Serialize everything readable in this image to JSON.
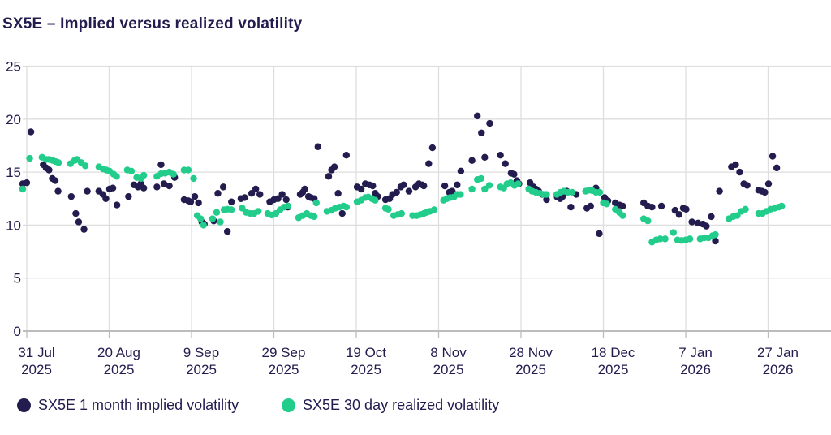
{
  "title": "SX5E – Implied versus realized volatility",
  "colors": {
    "implied": "#221c4f",
    "realized": "#22cd8c",
    "grid": "#dedede",
    "axis": "#bcbcbc",
    "text": "#221c4f"
  },
  "legend": [
    {
      "label": "SX5E 1 month implied volatility",
      "color": "#221c4f"
    },
    {
      "label": "SX5E 30 day realized volatility",
      "color": "#22cd8c"
    }
  ],
  "chart_data": {
    "type": "scatter",
    "title": "SX5E – Implied versus realized volatility",
    "x_unit": "days since 31 Jul 2025",
    "xlim": [
      -2,
      195
    ],
    "ylim": [
      0,
      25
    ],
    "grid": true,
    "legend_position": "bottom",
    "y_ticks": [
      0,
      5,
      10,
      15,
      20,
      25
    ],
    "x_ticks": [
      {
        "day": 0,
        "top": "31 Jul",
        "bottom": "2025"
      },
      {
        "day": 20,
        "top": "20 Aug",
        "bottom": "2025"
      },
      {
        "day": 40,
        "top": "9 Sep",
        "bottom": "2025"
      },
      {
        "day": 60,
        "top": "29 Sep",
        "bottom": "2025"
      },
      {
        "day": 80,
        "top": "19 Oct",
        "bottom": "2025"
      },
      {
        "day": 100,
        "top": "8 Nov",
        "bottom": "2025"
      },
      {
        "day": 120,
        "top": "28 Nov",
        "bottom": "2025"
      },
      {
        "day": 140,
        "top": "18 Dec",
        "bottom": "2025"
      },
      {
        "day": 160,
        "top": "7 Jan",
        "bottom": "2026"
      },
      {
        "day": 180,
        "top": "27 Jan",
        "bottom": "2026"
      }
    ],
    "series": [
      {
        "name": "SX5E 1 month implied volatility",
        "color": "#221c4f",
        "points": [
          [
            -1,
            13.9
          ],
          [
            0,
            14.0
          ],
          [
            1,
            18.8
          ],
          [
            4,
            15.7
          ],
          [
            4.7,
            15.4
          ],
          [
            5.4,
            15.2
          ],
          [
            6.2,
            14.4
          ],
          [
            6.9,
            14.2
          ],
          [
            7.6,
            13.2
          ],
          [
            10.8,
            12.7
          ],
          [
            11.9,
            11.1
          ],
          [
            12.6,
            10.3
          ],
          [
            13.9,
            9.6
          ],
          [
            14.7,
            13.2
          ],
          [
            17.5,
            13.2
          ],
          [
            18.5,
            12.9
          ],
          [
            19.2,
            12.5
          ],
          [
            20.1,
            13.4
          ],
          [
            20.9,
            13.5
          ],
          [
            21.9,
            11.9
          ],
          [
            24.7,
            12.7
          ],
          [
            26,
            13.8
          ],
          [
            27,
            13.6
          ],
          [
            27.7,
            13.9
          ],
          [
            28.4,
            13.5
          ],
          [
            31.6,
            13.6
          ],
          [
            32.6,
            15.7
          ],
          [
            33.3,
            13.9
          ],
          [
            34.6,
            13.7
          ],
          [
            35.9,
            14.5
          ],
          [
            38.2,
            12.4
          ],
          [
            39.2,
            12.3
          ],
          [
            39.8,
            12.2
          ],
          [
            40.8,
            12.7
          ],
          [
            41.7,
            12.1
          ],
          [
            42.5,
            10.3
          ],
          [
            43.1,
            10.1
          ],
          [
            45.4,
            10.4
          ],
          [
            46.4,
            13.0
          ],
          [
            47.7,
            13.6
          ],
          [
            48.7,
            9.4
          ],
          [
            49.7,
            12.2
          ],
          [
            52,
            12.5
          ],
          [
            52.9,
            12.6
          ],
          [
            54.6,
            13.0
          ],
          [
            55.6,
            13.4
          ],
          [
            56.6,
            12.9
          ],
          [
            59,
            12.2
          ],
          [
            60,
            12.4
          ],
          [
            61,
            12.5
          ],
          [
            62,
            12.9
          ],
          [
            63,
            12.4
          ],
          [
            63.4,
            11.7
          ],
          [
            66.4,
            12.9
          ],
          [
            67,
            13.1
          ],
          [
            67.5,
            13.4
          ],
          [
            68.4,
            12.7
          ],
          [
            69,
            12.6
          ],
          [
            69.8,
            12.5
          ],
          [
            70.7,
            17.4
          ],
          [
            73.3,
            14.6
          ],
          [
            74,
            15.2
          ],
          [
            74.7,
            15.5
          ],
          [
            75.6,
            13.0
          ],
          [
            76.6,
            11.1
          ],
          [
            77.6,
            16.6
          ],
          [
            80.2,
            13.6
          ],
          [
            81.2,
            13.4
          ],
          [
            82.2,
            13.9
          ],
          [
            83.2,
            13.8
          ],
          [
            84,
            13.7
          ],
          [
            84.6,
            13.0
          ],
          [
            85.2,
            12.7
          ],
          [
            87.1,
            12.4
          ],
          [
            88.1,
            12.5
          ],
          [
            88.8,
            12.9
          ],
          [
            89.8,
            13.1
          ],
          [
            90.8,
            13.6
          ],
          [
            91.5,
            13.8
          ],
          [
            92.8,
            13.2
          ],
          [
            94.4,
            13.6
          ],
          [
            95.2,
            13.9
          ],
          [
            96,
            13.8
          ],
          [
            96.4,
            13.7
          ],
          [
            97.6,
            15.8
          ],
          [
            98.5,
            17.3
          ],
          [
            101.5,
            13.7
          ],
          [
            102.6,
            13.1
          ],
          [
            103.3,
            13.2
          ],
          [
            104.5,
            13.8
          ],
          [
            105.4,
            15.1
          ],
          [
            108.1,
            16.1
          ],
          [
            109.4,
            20.3
          ],
          [
            110.4,
            18.7
          ],
          [
            111.2,
            16.4
          ],
          [
            112.4,
            19.6
          ],
          [
            115,
            16.6
          ],
          [
            116.2,
            15.8
          ],
          [
            117.6,
            14.9
          ],
          [
            118.3,
            14.8
          ],
          [
            119,
            14.2
          ],
          [
            119.5,
            13.9
          ],
          [
            122.2,
            14.0
          ],
          [
            123,
            13.6
          ],
          [
            123.6,
            13.4
          ],
          [
            124.3,
            13.2
          ],
          [
            125.2,
            12.9
          ],
          [
            126.2,
            12.4
          ],
          [
            128.8,
            12.65
          ],
          [
            129.5,
            12.5
          ],
          [
            130.1,
            12.7
          ],
          [
            131.1,
            13.2
          ],
          [
            132.1,
            11.7
          ],
          [
            133.4,
            12.9
          ],
          [
            136,
            11.6
          ],
          [
            136.9,
            11.8
          ],
          [
            138.2,
            13.5
          ],
          [
            139,
            9.2
          ],
          [
            140.3,
            12.6
          ],
          [
            141.1,
            12.3
          ],
          [
            142.9,
            12.1
          ],
          [
            143.9,
            11.9
          ],
          [
            144.7,
            11.8
          ],
          [
            149.8,
            12.1
          ],
          [
            150.8,
            11.8
          ],
          [
            151.8,
            11.7
          ],
          [
            154.1,
            11.8
          ],
          [
            157.4,
            11.4
          ],
          [
            158.4,
            11.0
          ],
          [
            159.4,
            11.6
          ],
          [
            160.1,
            11.5
          ],
          [
            161.5,
            10.3
          ],
          [
            163,
            10.2
          ],
          [
            164.2,
            10.1
          ],
          [
            165,
            9.9
          ],
          [
            166.2,
            10.8
          ],
          [
            167.2,
            8.5
          ],
          [
            168.2,
            13.2
          ],
          [
            171.1,
            15.5
          ],
          [
            172.1,
            15.7
          ],
          [
            173.1,
            15.0
          ],
          [
            174.1,
            13.9
          ],
          [
            174.9,
            13.75
          ],
          [
            177.7,
            13.3
          ],
          [
            178.5,
            13.2
          ],
          [
            179.2,
            13.1
          ],
          [
            180.1,
            13.9
          ],
          [
            181.1,
            16.5
          ],
          [
            182.1,
            15.4
          ]
        ]
      },
      {
        "name": "SX5E 30 day realized volatility",
        "color": "#22cd8c",
        "points": [
          [
            -1,
            13.4
          ],
          [
            0.7,
            16.3
          ],
          [
            3.7,
            16.4
          ],
          [
            4.7,
            16.2
          ],
          [
            5.4,
            16.2
          ],
          [
            6.3,
            16.1
          ],
          [
            7,
            16.0
          ],
          [
            7.7,
            15.9
          ],
          [
            10.6,
            15.8
          ],
          [
            11.6,
            16.1
          ],
          [
            12.2,
            16.2
          ],
          [
            13.2,
            15.9
          ],
          [
            14.2,
            15.6
          ],
          [
            17.5,
            15.5
          ],
          [
            18.5,
            15.3
          ],
          [
            19.3,
            15.2
          ],
          [
            20.1,
            15.1
          ],
          [
            21.1,
            14.8
          ],
          [
            21.8,
            14.6
          ],
          [
            24.4,
            15.2
          ],
          [
            25.4,
            15.1
          ],
          [
            26.7,
            14.5
          ],
          [
            27.7,
            14.4
          ],
          [
            28.4,
            14.7
          ],
          [
            31.6,
            14.6
          ],
          [
            32.6,
            14.85
          ],
          [
            33.6,
            14.9
          ],
          [
            34.6,
            15.0
          ],
          [
            35.6,
            14.8
          ],
          [
            38.2,
            15.2
          ],
          [
            39.2,
            15.2
          ],
          [
            40.5,
            14.4
          ],
          [
            41.4,
            10.9
          ],
          [
            42.2,
            10.6
          ],
          [
            42.9,
            10.0
          ],
          [
            45.1,
            10.6
          ],
          [
            46.1,
            11.2
          ],
          [
            47,
            10.3
          ],
          [
            47.9,
            11.45
          ],
          [
            48.7,
            11.5
          ],
          [
            49.7,
            11.45
          ],
          [
            52.3,
            11.6
          ],
          [
            53.3,
            11.2
          ],
          [
            54.3,
            11.1
          ],
          [
            55.2,
            11.1
          ],
          [
            56.2,
            11.3
          ],
          [
            58.5,
            11.1
          ],
          [
            59.5,
            10.95
          ],
          [
            60.5,
            11.1
          ],
          [
            61.5,
            11.45
          ],
          [
            62.5,
            11.7
          ],
          [
            63.4,
            11.8
          ],
          [
            66,
            10.7
          ],
          [
            67,
            10.9
          ],
          [
            68,
            11.1
          ],
          [
            69,
            10.9
          ],
          [
            69.8,
            10.8
          ],
          [
            70.3,
            12.1
          ],
          [
            72.9,
            11.3
          ],
          [
            74,
            11.4
          ],
          [
            74.9,
            11.6
          ],
          [
            75.9,
            11.7
          ],
          [
            76.9,
            11.8
          ],
          [
            77.6,
            11.7
          ],
          [
            80.2,
            12.2
          ],
          [
            81.2,
            12.35
          ],
          [
            82.2,
            12.6
          ],
          [
            82.9,
            12.65
          ],
          [
            83.8,
            12.5
          ],
          [
            84.6,
            12.35
          ],
          [
            87.1,
            11.6
          ],
          [
            87.8,
            11.5
          ],
          [
            89.1,
            10.9
          ],
          [
            90.1,
            11.0
          ],
          [
            91,
            11.1
          ],
          [
            93.7,
            10.9
          ],
          [
            94.7,
            10.9
          ],
          [
            95.6,
            11.0
          ],
          [
            96.4,
            11.1
          ],
          [
            97.1,
            11.2
          ],
          [
            97.9,
            11.3
          ],
          [
            98.9,
            11.45
          ],
          [
            101.2,
            12.35
          ],
          [
            102,
            12.5
          ],
          [
            102.8,
            12.6
          ],
          [
            103.7,
            12.65
          ],
          [
            104.5,
            12.9
          ],
          [
            105.3,
            12.9
          ],
          [
            108.1,
            13.4
          ],
          [
            109.4,
            14.3
          ],
          [
            110.3,
            14.4
          ],
          [
            111.2,
            13.4
          ],
          [
            112.3,
            13.75
          ],
          [
            115,
            13.6
          ],
          [
            115.8,
            13.5
          ],
          [
            116.6,
            13.9
          ],
          [
            117.5,
            14.0
          ],
          [
            118.4,
            13.75
          ],
          [
            119.3,
            13.9
          ],
          [
            121.9,
            13.4
          ],
          [
            122.7,
            13.2
          ],
          [
            123.6,
            13.1
          ],
          [
            124.6,
            13.0
          ],
          [
            125.4,
            12.9
          ],
          [
            126.2,
            12.9
          ],
          [
            128.7,
            12.9
          ],
          [
            129.6,
            13.1
          ],
          [
            130.4,
            13.2
          ],
          [
            131.4,
            13.1
          ],
          [
            132.4,
            13.1
          ],
          [
            135.7,
            13.2
          ],
          [
            136.5,
            13.3
          ],
          [
            137.3,
            13.25
          ],
          [
            138.2,
            13.1
          ],
          [
            139.1,
            13.1
          ],
          [
            140,
            12.1
          ],
          [
            140.8,
            12.0
          ],
          [
            142.9,
            11.5
          ],
          [
            143.9,
            11.2
          ],
          [
            144.7,
            10.9
          ],
          [
            149.8,
            10.6
          ],
          [
            150.8,
            10.4
          ],
          [
            151.8,
            8.4
          ],
          [
            152.8,
            8.6
          ],
          [
            153.8,
            8.7
          ],
          [
            155,
            8.7
          ],
          [
            157,
            9.3
          ],
          [
            158,
            8.6
          ],
          [
            159,
            8.55
          ],
          [
            160,
            8.6
          ],
          [
            161,
            8.7
          ],
          [
            163.5,
            8.7
          ],
          [
            164.5,
            8.8
          ],
          [
            165.5,
            8.8
          ],
          [
            166.5,
            9.0
          ],
          [
            167.2,
            9.1
          ],
          [
            170.5,
            10.6
          ],
          [
            171.5,
            10.8
          ],
          [
            172.5,
            10.9
          ],
          [
            173.5,
            11.3
          ],
          [
            174.5,
            11.5
          ],
          [
            177.7,
            11.1
          ],
          [
            178.6,
            11.1
          ],
          [
            179.6,
            11.3
          ],
          [
            180.6,
            11.5
          ],
          [
            181.6,
            11.6
          ],
          [
            182.6,
            11.7
          ],
          [
            183.3,
            11.8
          ]
        ]
      }
    ]
  }
}
